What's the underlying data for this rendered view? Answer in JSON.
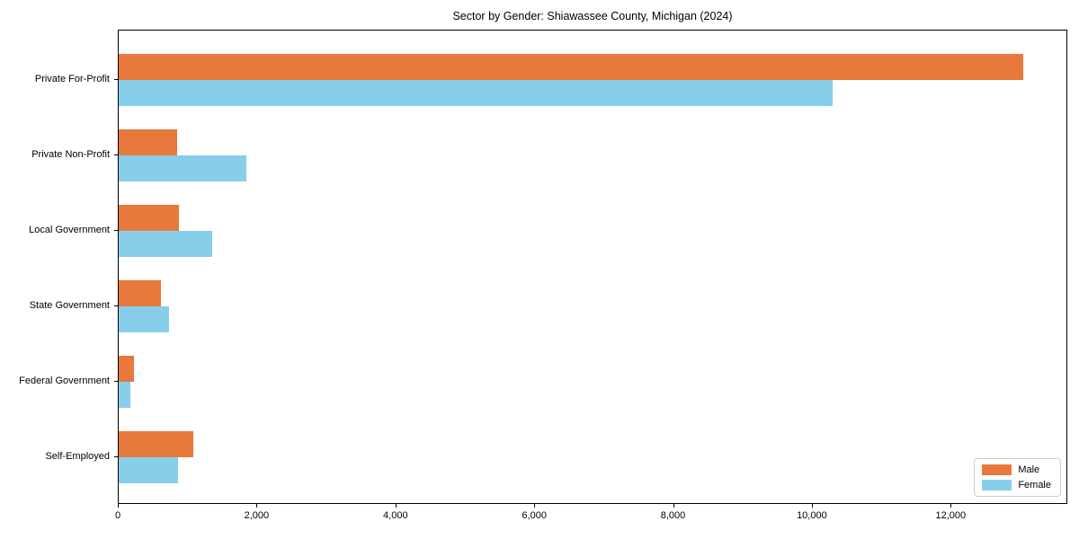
{
  "chart_data": {
    "type": "bar",
    "orientation": "horizontal",
    "title": "Sector by Gender: Shiawassee County, Michigan (2024)",
    "xlabel": "",
    "ylabel": "",
    "categories": [
      "Private For-Profit",
      "Private Non-Profit",
      "Local Government",
      "State Government",
      "Federal Government",
      "Self-Employed"
    ],
    "series": [
      {
        "name": "Male",
        "color": "#e8793d",
        "values": [
          13030,
          835,
          865,
          610,
          225,
          1080
        ]
      },
      {
        "name": "Female",
        "color": "#87ceeb",
        "values": [
          10290,
          1845,
          1350,
          720,
          170,
          850
        ]
      }
    ],
    "xlim": [
      0,
      13680
    ],
    "x_ticks": [
      0,
      2000,
      4000,
      6000,
      8000,
      10000,
      12000
    ],
    "x_tick_labels": [
      "0",
      "2,000",
      "4,000",
      "6,000",
      "8,000",
      "10,000",
      "12,000"
    ],
    "grid": false,
    "legend_position": "lower right"
  }
}
